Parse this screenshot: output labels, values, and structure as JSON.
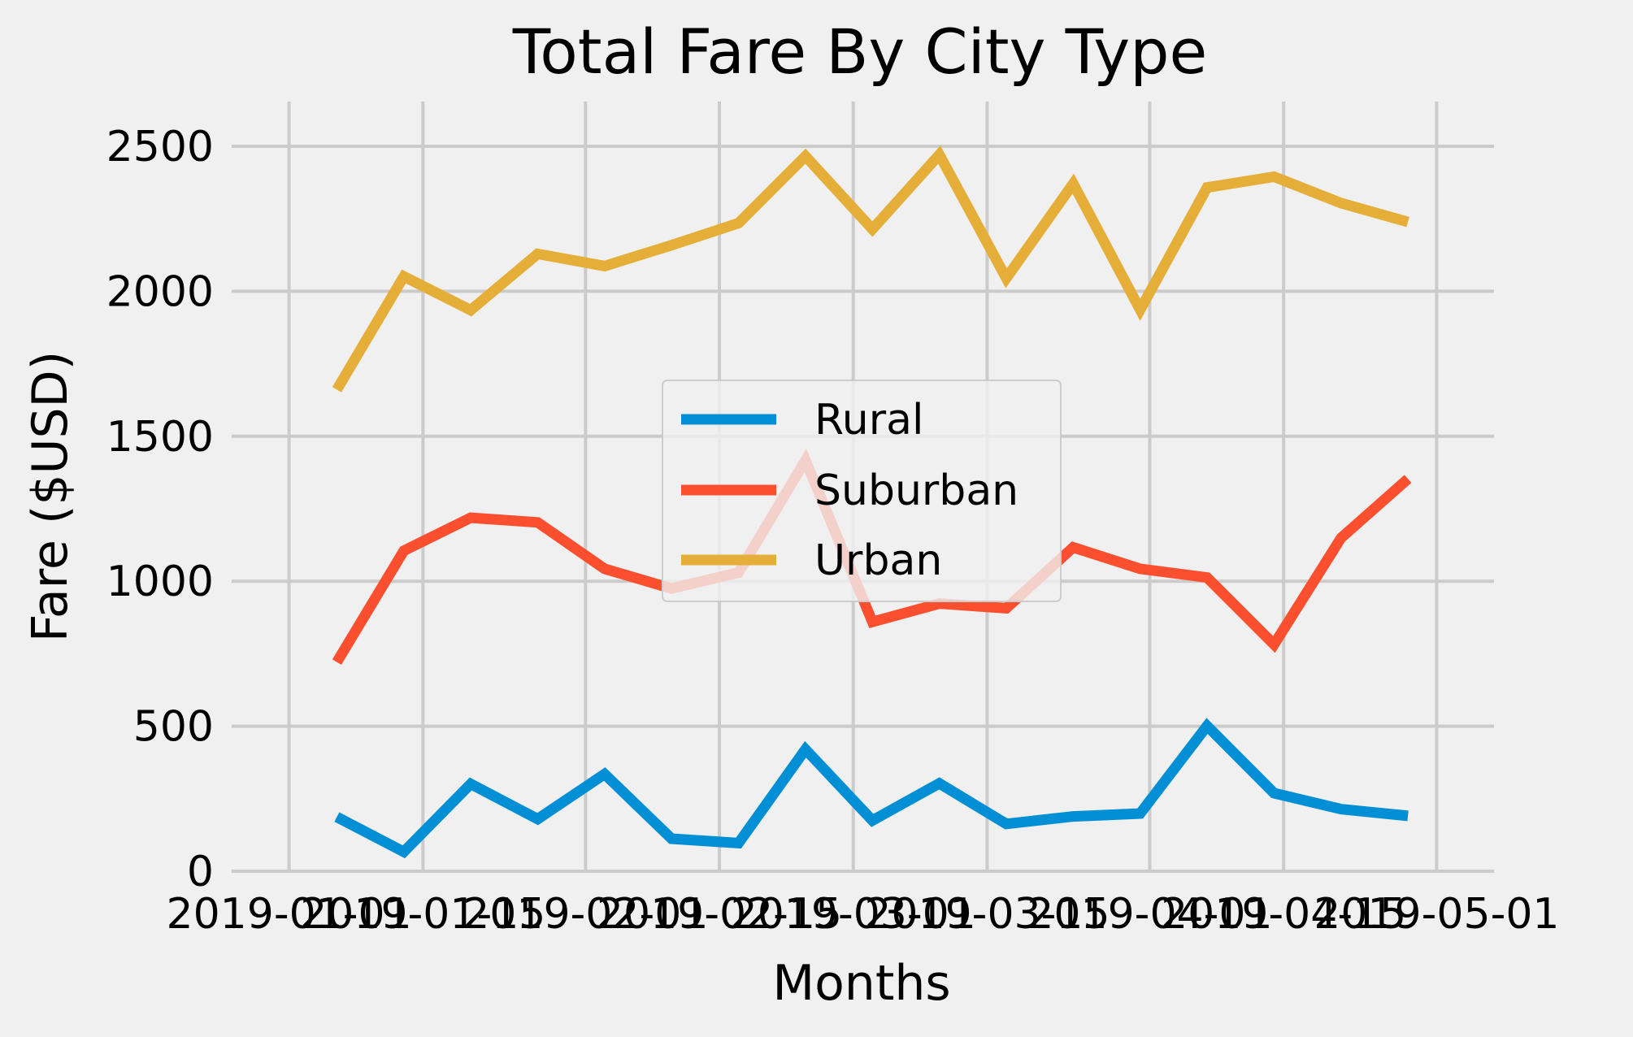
{
  "chart_data": {
    "type": "line",
    "title": "Total Fare By City Type",
    "xlabel": "Months",
    "ylabel": "Fare ($USD)",
    "x": [
      "2019-01-06",
      "2019-01-13",
      "2019-01-20",
      "2019-01-27",
      "2019-02-03",
      "2019-02-10",
      "2019-02-17",
      "2019-02-24",
      "2019-03-03",
      "2019-03-10",
      "2019-03-17",
      "2019-03-24",
      "2019-03-31",
      "2019-04-07",
      "2019-04-14",
      "2019-04-21",
      "2019-04-28"
    ],
    "xlim": [
      "2019-01-01",
      "2019-05-01"
    ],
    "x_ticks": [
      "2019-01-01",
      "2019-01-15",
      "2019-02-01",
      "2019-02-15",
      "2019-03-01",
      "2019-03-15",
      "2019-04-01",
      "2019-04-15",
      "2019-05-01"
    ],
    "ylim": [
      0,
      2500
    ],
    "y_ticks": [
      0,
      500,
      1000,
      1500,
      2000,
      2500
    ],
    "y_tick_labels": [
      "0",
      "500",
      "1000",
      "1500",
      "2000",
      "2500"
    ],
    "grid": true,
    "legend_position": "center",
    "series": [
      {
        "name": "Rural",
        "color": "#008fd5",
        "values": [
          187,
          67,
          301,
          180,
          335,
          112,
          97,
          420,
          175,
          303,
          163,
          189,
          199,
          501,
          269,
          214,
          191
        ]
      },
      {
        "name": "Suburban",
        "color": "#fc4f30",
        "values": [
          721,
          1105,
          1219,
          1203,
          1043,
          975,
          1030,
          1417,
          860,
          923,
          907,
          1117,
          1043,
          1013,
          782,
          1149,
          1353
        ]
      },
      {
        "name": "Urban",
        "color": "#e5ae38",
        "values": [
          1661,
          2051,
          1935,
          2129,
          2087,
          2159,
          2235,
          2466,
          2214,
          2471,
          2045,
          2371,
          1936,
          2358,
          2395,
          2304,
          2239
        ]
      }
    ]
  }
}
